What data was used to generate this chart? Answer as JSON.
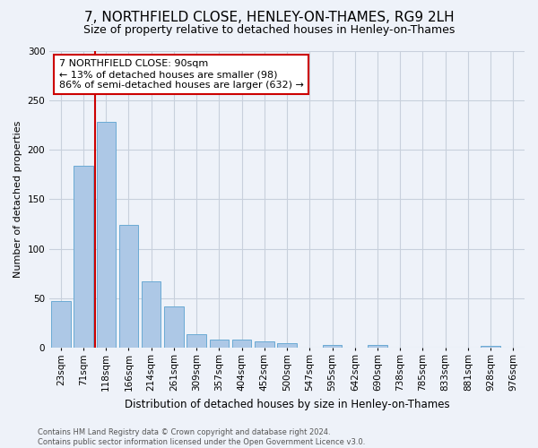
{
  "title": "7, NORTHFIELD CLOSE, HENLEY-ON-THAMES, RG9 2LH",
  "subtitle": "Size of property relative to detached houses in Henley-on-Thames",
  "xlabel": "Distribution of detached houses by size in Henley-on-Thames",
  "ylabel": "Number of detached properties",
  "categories": [
    "23sqm",
    "71sqm",
    "118sqm",
    "166sqm",
    "214sqm",
    "261sqm",
    "309sqm",
    "357sqm",
    "404sqm",
    "452sqm",
    "500sqm",
    "547sqm",
    "595sqm",
    "642sqm",
    "690sqm",
    "738sqm",
    "785sqm",
    "833sqm",
    "881sqm",
    "928sqm",
    "976sqm"
  ],
  "values": [
    47,
    184,
    228,
    124,
    67,
    42,
    14,
    9,
    9,
    7,
    5,
    0,
    3,
    0,
    3,
    0,
    0,
    0,
    0,
    2,
    0
  ],
  "bar_color": "#adc8e6",
  "bar_edge_color": "#6aaad4",
  "ylim": [
    0,
    300
  ],
  "yticks": [
    0,
    50,
    100,
    150,
    200,
    250,
    300
  ],
  "vline_x": 1.5,
  "vline_color": "#cc0000",
  "annotation_text": "7 NORTHFIELD CLOSE: 90sqm\n← 13% of detached houses are smaller (98)\n86% of semi-detached houses are larger (632) →",
  "annotation_box_color": "#ffffff",
  "annotation_box_edgecolor": "#cc0000",
  "footer_line1": "Contains HM Land Registry data © Crown copyright and database right 2024.",
  "footer_line2": "Contains public sector information licensed under the Open Government Licence v3.0.",
  "background_color": "#eef2f9",
  "grid_color": "#c8d0dc",
  "title_fontsize": 11,
  "subtitle_fontsize": 9,
  "ylabel_fontsize": 8,
  "xlabel_fontsize": 8.5,
  "tick_fontsize": 7.5,
  "annotation_fontsize": 8
}
